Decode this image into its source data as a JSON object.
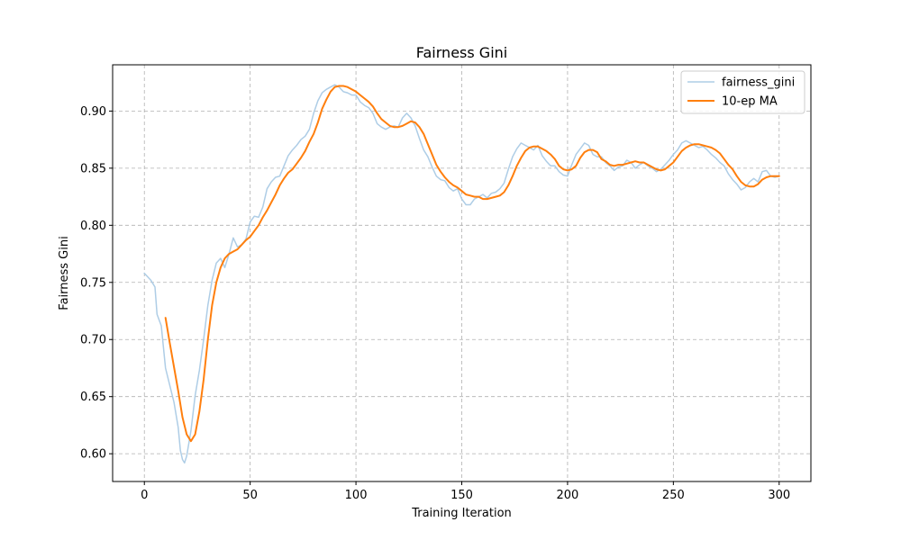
{
  "chart_data": {
    "type": "line",
    "title": "Fairness Gini",
    "xlabel": "Training Iteration",
    "ylabel": "Fairness Gini",
    "xlim": [
      -15,
      315
    ],
    "ylim": [
      0.5757,
      0.9405
    ],
    "xticks": [
      0,
      50,
      100,
      150,
      200,
      250,
      300
    ],
    "xtick_labels": [
      "0",
      "50",
      "100",
      "150",
      "200",
      "250",
      "300"
    ],
    "yticks": [
      0.6,
      0.65,
      0.7,
      0.75,
      0.8,
      0.85,
      0.9
    ],
    "ytick_labels": [
      "0.60",
      "0.65",
      "0.70",
      "0.75",
      "0.80",
      "0.85",
      "0.90"
    ],
    "grid": true,
    "legend_position": "top-right",
    "series": [
      {
        "name": "fairness_gini",
        "color": "#aecde6",
        "points": [
          [
            0,
            0.758
          ],
          [
            3,
            0.752
          ],
          [
            5,
            0.746
          ],
          [
            6,
            0.722
          ],
          [
            8,
            0.712
          ],
          [
            10,
            0.675
          ],
          [
            12,
            0.66
          ],
          [
            14,
            0.645
          ],
          [
            16,
            0.623
          ],
          [
            17,
            0.603
          ],
          [
            18,
            0.595
          ],
          [
            19,
            0.592
          ],
          [
            20,
            0.598
          ],
          [
            22,
            0.62
          ],
          [
            24,
            0.651
          ],
          [
            26,
            0.673
          ],
          [
            28,
            0.7
          ],
          [
            30,
            0.73
          ],
          [
            32,
            0.752
          ],
          [
            34,
            0.767
          ],
          [
            36,
            0.771
          ],
          [
            38,
            0.763
          ],
          [
            40,
            0.775
          ],
          [
            42,
            0.789
          ],
          [
            44,
            0.781
          ],
          [
            46,
            0.783
          ],
          [
            48,
            0.788
          ],
          [
            50,
            0.803
          ],
          [
            52,
            0.808
          ],
          [
            54,
            0.807
          ],
          [
            56,
            0.816
          ],
          [
            58,
            0.832
          ],
          [
            60,
            0.838
          ],
          [
            62,
            0.842
          ],
          [
            64,
            0.843
          ],
          [
            66,
            0.852
          ],
          [
            68,
            0.861
          ],
          [
            70,
            0.866
          ],
          [
            72,
            0.87
          ],
          [
            74,
            0.875
          ],
          [
            76,
            0.878
          ],
          [
            78,
            0.884
          ],
          [
            80,
            0.898
          ],
          [
            82,
            0.909
          ],
          [
            84,
            0.916
          ],
          [
            86,
            0.919
          ],
          [
            88,
            0.921
          ],
          [
            90,
            0.923
          ],
          [
            92,
            0.921
          ],
          [
            94,
            0.917
          ],
          [
            96,
            0.916
          ],
          [
            98,
            0.914
          ],
          [
            100,
            0.914
          ],
          [
            102,
            0.908
          ],
          [
            104,
            0.905
          ],
          [
            106,
            0.903
          ],
          [
            108,
            0.898
          ],
          [
            110,
            0.889
          ],
          [
            112,
            0.886
          ],
          [
            114,
            0.884
          ],
          [
            116,
            0.886
          ],
          [
            118,
            0.887
          ],
          [
            120,
            0.886
          ],
          [
            122,
            0.894
          ],
          [
            124,
            0.898
          ],
          [
            126,
            0.894
          ],
          [
            128,
            0.887
          ],
          [
            130,
            0.876
          ],
          [
            132,
            0.866
          ],
          [
            134,
            0.86
          ],
          [
            136,
            0.851
          ],
          [
            138,
            0.843
          ],
          [
            140,
            0.84
          ],
          [
            142,
            0.839
          ],
          [
            144,
            0.833
          ],
          [
            146,
            0.83
          ],
          [
            148,
            0.832
          ],
          [
            150,
            0.823
          ],
          [
            152,
            0.818
          ],
          [
            154,
            0.818
          ],
          [
            156,
            0.823
          ],
          [
            158,
            0.825
          ],
          [
            160,
            0.827
          ],
          [
            162,
            0.824
          ],
          [
            164,
            0.828
          ],
          [
            166,
            0.829
          ],
          [
            168,
            0.832
          ],
          [
            170,
            0.837
          ],
          [
            172,
            0.849
          ],
          [
            174,
            0.86
          ],
          [
            176,
            0.867
          ],
          [
            178,
            0.872
          ],
          [
            180,
            0.87
          ],
          [
            182,
            0.868
          ],
          [
            184,
            0.866
          ],
          [
            186,
            0.87
          ],
          [
            188,
            0.861
          ],
          [
            190,
            0.856
          ],
          [
            192,
            0.852
          ],
          [
            194,
            0.852
          ],
          [
            196,
            0.847
          ],
          [
            198,
            0.844
          ],
          [
            200,
            0.843
          ],
          [
            202,
            0.853
          ],
          [
            204,
            0.862
          ],
          [
            206,
            0.867
          ],
          [
            208,
            0.872
          ],
          [
            210,
            0.87
          ],
          [
            212,
            0.862
          ],
          [
            214,
            0.86
          ],
          [
            216,
            0.86
          ],
          [
            218,
            0.855
          ],
          [
            220,
            0.852
          ],
          [
            222,
            0.848
          ],
          [
            224,
            0.851
          ],
          [
            226,
            0.852
          ],
          [
            228,
            0.857
          ],
          [
            230,
            0.855
          ],
          [
            232,
            0.85
          ],
          [
            234,
            0.853
          ],
          [
            236,
            0.855
          ],
          [
            238,
            0.852
          ],
          [
            240,
            0.85
          ],
          [
            242,
            0.847
          ],
          [
            244,
            0.849
          ],
          [
            246,
            0.853
          ],
          [
            248,
            0.857
          ],
          [
            250,
            0.862
          ],
          [
            252,
            0.866
          ],
          [
            254,
            0.872
          ],
          [
            256,
            0.874
          ],
          [
            258,
            0.872
          ],
          [
            260,
            0.87
          ],
          [
            262,
            0.868
          ],
          [
            264,
            0.869
          ],
          [
            266,
            0.866
          ],
          [
            268,
            0.862
          ],
          [
            270,
            0.859
          ],
          [
            272,
            0.855
          ],
          [
            274,
            0.852
          ],
          [
            276,
            0.845
          ],
          [
            278,
            0.84
          ],
          [
            280,
            0.836
          ],
          [
            282,
            0.831
          ],
          [
            284,
            0.833
          ],
          [
            286,
            0.838
          ],
          [
            288,
            0.841
          ],
          [
            290,
            0.838
          ],
          [
            292,
            0.847
          ],
          [
            294,
            0.848
          ],
          [
            296,
            0.843
          ],
          [
            298,
            0.842
          ],
          [
            300,
            0.843
          ]
        ]
      },
      {
        "name": "10-ep MA",
        "color": "#ff7f0e",
        "points": [
          [
            10,
            0.719
          ],
          [
            12,
            0.697
          ],
          [
            14,
            0.676
          ],
          [
            16,
            0.655
          ],
          [
            18,
            0.632
          ],
          [
            20,
            0.617
          ],
          [
            22,
            0.611
          ],
          [
            24,
            0.617
          ],
          [
            26,
            0.637
          ],
          [
            28,
            0.665
          ],
          [
            30,
            0.7
          ],
          [
            32,
            0.73
          ],
          [
            34,
            0.75
          ],
          [
            36,
            0.763
          ],
          [
            38,
            0.771
          ],
          [
            40,
            0.775
          ],
          [
            42,
            0.777
          ],
          [
            44,
            0.779
          ],
          [
            46,
            0.783
          ],
          [
            48,
            0.787
          ],
          [
            50,
            0.79
          ],
          [
            52,
            0.795
          ],
          [
            54,
            0.8
          ],
          [
            56,
            0.807
          ],
          [
            58,
            0.813
          ],
          [
            60,
            0.82
          ],
          [
            62,
            0.827
          ],
          [
            64,
            0.835
          ],
          [
            66,
            0.841
          ],
          [
            68,
            0.846
          ],
          [
            70,
            0.849
          ],
          [
            72,
            0.854
          ],
          [
            74,
            0.859
          ],
          [
            76,
            0.865
          ],
          [
            78,
            0.873
          ],
          [
            80,
            0.88
          ],
          [
            82,
            0.89
          ],
          [
            84,
            0.902
          ],
          [
            86,
            0.91
          ],
          [
            88,
            0.917
          ],
          [
            90,
            0.921
          ],
          [
            92,
            0.922
          ],
          [
            94,
            0.922
          ],
          [
            96,
            0.921
          ],
          [
            98,
            0.919
          ],
          [
            100,
            0.917
          ],
          [
            102,
            0.914
          ],
          [
            104,
            0.911
          ],
          [
            106,
            0.908
          ],
          [
            108,
            0.904
          ],
          [
            110,
            0.898
          ],
          [
            112,
            0.893
          ],
          [
            114,
            0.89
          ],
          [
            116,
            0.887
          ],
          [
            118,
            0.886
          ],
          [
            120,
            0.886
          ],
          [
            122,
            0.887
          ],
          [
            124,
            0.889
          ],
          [
            126,
            0.891
          ],
          [
            128,
            0.89
          ],
          [
            130,
            0.886
          ],
          [
            132,
            0.88
          ],
          [
            134,
            0.871
          ],
          [
            136,
            0.862
          ],
          [
            138,
            0.853
          ],
          [
            140,
            0.847
          ],
          [
            142,
            0.842
          ],
          [
            144,
            0.838
          ],
          [
            146,
            0.835
          ],
          [
            148,
            0.833
          ],
          [
            150,
            0.83
          ],
          [
            152,
            0.827
          ],
          [
            154,
            0.826
          ],
          [
            156,
            0.825
          ],
          [
            158,
            0.825
          ],
          [
            160,
            0.823
          ],
          [
            162,
            0.823
          ],
          [
            164,
            0.824
          ],
          [
            166,
            0.825
          ],
          [
            168,
            0.826
          ],
          [
            170,
            0.829
          ],
          [
            172,
            0.835
          ],
          [
            174,
            0.843
          ],
          [
            176,
            0.852
          ],
          [
            178,
            0.859
          ],
          [
            180,
            0.865
          ],
          [
            182,
            0.868
          ],
          [
            184,
            0.869
          ],
          [
            186,
            0.869
          ],
          [
            188,
            0.867
          ],
          [
            190,
            0.865
          ],
          [
            192,
            0.862
          ],
          [
            194,
            0.858
          ],
          [
            196,
            0.852
          ],
          [
            198,
            0.849
          ],
          [
            200,
            0.848
          ],
          [
            202,
            0.849
          ],
          [
            204,
            0.852
          ],
          [
            206,
            0.859
          ],
          [
            208,
            0.864
          ],
          [
            210,
            0.866
          ],
          [
            212,
            0.866
          ],
          [
            214,
            0.864
          ],
          [
            216,
            0.858
          ],
          [
            218,
            0.856
          ],
          [
            220,
            0.853
          ],
          [
            222,
            0.852
          ],
          [
            224,
            0.853
          ],
          [
            226,
            0.853
          ],
          [
            228,
            0.854
          ],
          [
            230,
            0.855
          ],
          [
            232,
            0.856
          ],
          [
            234,
            0.855
          ],
          [
            236,
            0.855
          ],
          [
            238,
            0.853
          ],
          [
            240,
            0.851
          ],
          [
            242,
            0.849
          ],
          [
            244,
            0.848
          ],
          [
            246,
            0.849
          ],
          [
            248,
            0.852
          ],
          [
            250,
            0.855
          ],
          [
            252,
            0.86
          ],
          [
            254,
            0.865
          ],
          [
            256,
            0.868
          ],
          [
            258,
            0.87
          ],
          [
            260,
            0.871
          ],
          [
            262,
            0.871
          ],
          [
            264,
            0.87
          ],
          [
            266,
            0.869
          ],
          [
            268,
            0.868
          ],
          [
            270,
            0.866
          ],
          [
            272,
            0.863
          ],
          [
            274,
            0.858
          ],
          [
            276,
            0.853
          ],
          [
            278,
            0.849
          ],
          [
            280,
            0.843
          ],
          [
            282,
            0.838
          ],
          [
            284,
            0.835
          ],
          [
            286,
            0.834
          ],
          [
            288,
            0.834
          ],
          [
            290,
            0.836
          ],
          [
            292,
            0.84
          ],
          [
            294,
            0.842
          ],
          [
            296,
            0.843
          ],
          [
            298,
            0.843
          ],
          [
            300,
            0.843
          ]
        ]
      }
    ]
  }
}
